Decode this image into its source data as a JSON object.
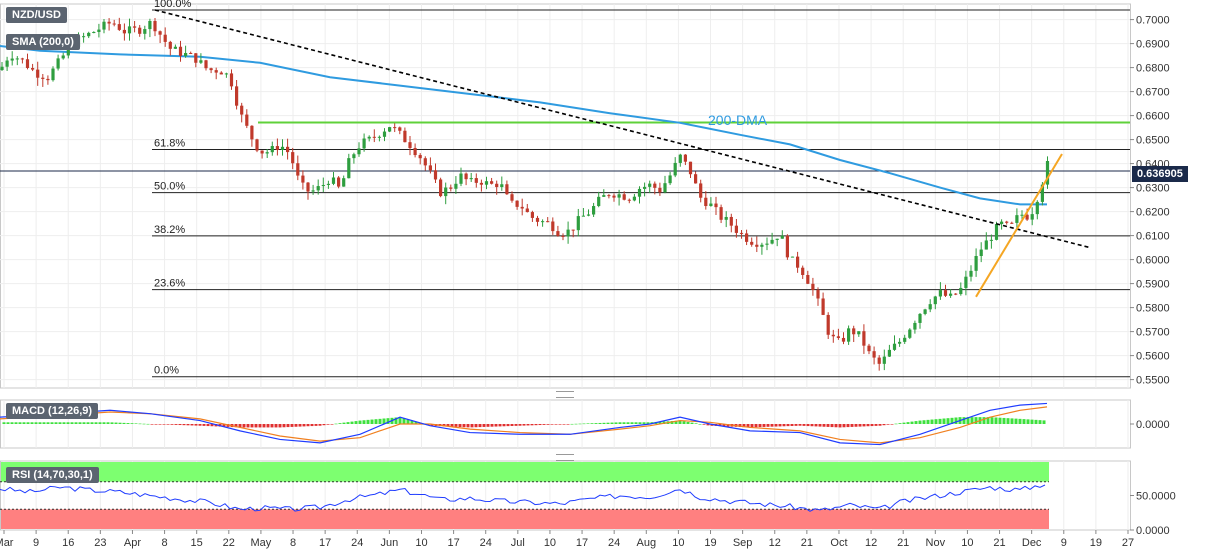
{
  "symbol_label": "NZD/USD",
  "sma_label": "SMA (200,0)",
  "macd_label": "MACD (12,26,9)",
  "rsi_label": "RSI (14,70,30,1)",
  "current_price": "0.636905",
  "dma_label": "200-DMA",
  "colors": {
    "bull": "#2e9e3f",
    "bear": "#c0392b",
    "sma": "#2f9be0",
    "resistance": "#5fd13a",
    "trend_up": "#f5a623",
    "trend_down": "#000000",
    "macd": "#1f3cff",
    "signal": "#f08020",
    "hist_pos": "#3ee03e",
    "hist_neg": "#e03030",
    "rsi": "#1f3cff",
    "overbought_zone": "#7dff70",
    "oversold_zone": "#ff8080"
  },
  "chart_data": [
    {
      "type": "candlestick",
      "title": "NZD/USD",
      "y_ticks": [
        "0.7000",
        "0.6900",
        "0.6800",
        "0.6700",
        "0.6600",
        "0.6500",
        "0.6400",
        "0.6300",
        "0.6200",
        "0.6100",
        "0.6000",
        "0.5900",
        "0.5800",
        "0.5700",
        "0.5600",
        "0.5500"
      ],
      "ylim": [
        0.5465,
        0.7065
      ],
      "x_ticks": [
        "Mar",
        "9",
        "16",
        "23",
        "Apr",
        "8",
        "15",
        "22",
        "May",
        "8",
        "17",
        "24",
        "Jun",
        "10",
        "17",
        "24",
        "Jul",
        "10",
        "17",
        "24",
        "Aug",
        "10",
        "19",
        "Sep",
        "12",
        "21",
        "Oct",
        "12",
        "21",
        "Nov",
        "10",
        "21",
        "Dec",
        "9",
        "19",
        "27"
      ],
      "fibonacci": [
        {
          "label": "100.0%",
          "value": 0.704
        },
        {
          "label": "61.8%",
          "value": 0.6459
        },
        {
          "label": "50.0%",
          "value": 0.6279
        },
        {
          "label": "38.2%",
          "value": 0.6099
        },
        {
          "label": "23.6%",
          "value": 0.5875
        },
        {
          "label": "0.0%",
          "value": 0.5512
        }
      ],
      "resistance_level": 0.6571,
      "last_price": 0.636905,
      "sma200": [
        [
          0,
          0.689
        ],
        [
          40,
          0.687
        ],
        [
          120,
          0.6855
        ],
        [
          200,
          0.6845
        ],
        [
          260,
          0.682
        ],
        [
          330,
          0.676
        ],
        [
          400,
          0.6725
        ],
        [
          470,
          0.669
        ],
        [
          540,
          0.6655
        ],
        [
          610,
          0.661
        ],
        [
          680,
          0.657
        ],
        [
          740,
          0.652
        ],
        [
          790,
          0.648
        ],
        [
          840,
          0.6415
        ],
        [
          890,
          0.636
        ],
        [
          940,
          0.63
        ],
        [
          980,
          0.6255
        ],
        [
          1020,
          0.623
        ],
        [
          1047,
          0.623
        ]
      ],
      "trend_down": [
        [
          155,
          0.704
        ],
        [
          1090,
          0.605
        ]
      ],
      "trend_up": [
        [
          976,
          0.5845
        ],
        [
          1062,
          0.644
        ]
      ],
      "price_path": [
        [
          0,
          0.679
        ],
        [
          10,
          0.686
        ],
        [
          22,
          0.683
        ],
        [
          35,
          0.678
        ],
        [
          48,
          0.676
        ],
        [
          60,
          0.683
        ],
        [
          72,
          0.69
        ],
        [
          85,
          0.693
        ],
        [
          98,
          0.696
        ],
        [
          112,
          0.699
        ],
        [
          125,
          0.695
        ],
        [
          140,
          0.696
        ],
        [
          152,
          0.699
        ],
        [
          160,
          0.694
        ],
        [
          170,
          0.688
        ],
        [
          182,
          0.686
        ],
        [
          195,
          0.684
        ],
        [
          208,
          0.679
        ],
        [
          220,
          0.679
        ],
        [
          230,
          0.676
        ],
        [
          240,
          0.661
        ],
        [
          250,
          0.652
        ],
        [
          260,
          0.645
        ],
        [
          270,
          0.645
        ],
        [
          280,
          0.648
        ],
        [
          290,
          0.644
        ],
        [
          300,
          0.631
        ],
        [
          310,
          0.628
        ],
        [
          320,
          0.63
        ],
        [
          330,
          0.634
        ],
        [
          340,
          0.629
        ],
        [
          350,
          0.642
        ],
        [
          360,
          0.648
        ],
        [
          370,
          0.65
        ],
        [
          380,
          0.653
        ],
        [
          390,
          0.656
        ],
        [
          400,
          0.652
        ],
        [
          410,
          0.648
        ],
        [
          420,
          0.643
        ],
        [
          430,
          0.636
        ],
        [
          440,
          0.628
        ],
        [
          450,
          0.63
        ],
        [
          460,
          0.635
        ],
        [
          470,
          0.632
        ],
        [
          480,
          0.633
        ],
        [
          490,
          0.631
        ],
        [
          500,
          0.632
        ],
        [
          510,
          0.623
        ],
        [
          520,
          0.623
        ],
        [
          530,
          0.618
        ],
        [
          540,
          0.616
        ],
        [
          550,
          0.615
        ],
        [
          560,
          0.611
        ],
        [
          570,
          0.612
        ],
        [
          580,
          0.617
        ],
        [
          590,
          0.62
        ],
        [
          600,
          0.625
        ],
        [
          610,
          0.628
        ],
        [
          620,
          0.627
        ],
        [
          630,
          0.626
        ],
        [
          640,
          0.63
        ],
        [
          650,
          0.631
        ],
        [
          660,
          0.629
        ],
        [
          670,
          0.635
        ],
        [
          680,
          0.643
        ],
        [
          690,
          0.637
        ],
        [
          700,
          0.626
        ],
        [
          710,
          0.623
        ],
        [
          720,
          0.618
        ],
        [
          730,
          0.615
        ],
        [
          740,
          0.611
        ],
        [
          750,
          0.608
        ],
        [
          760,
          0.607
        ],
        [
          770,
          0.608
        ],
        [
          780,
          0.611
        ],
        [
          790,
          0.6
        ],
        [
          800,
          0.597
        ],
        [
          810,
          0.59
        ],
        [
          820,
          0.58
        ],
        [
          830,
          0.568
        ],
        [
          840,
          0.565
        ],
        [
          850,
          0.571
        ],
        [
          860,
          0.568
        ],
        [
          870,
          0.56
        ],
        [
          880,
          0.556
        ],
        [
          890,
          0.562
        ],
        [
          900,
          0.566
        ],
        [
          910,
          0.572
        ],
        [
          920,
          0.578
        ],
        [
          930,
          0.583
        ],
        [
          940,
          0.586
        ],
        [
          950,
          0.584
        ],
        [
          960,
          0.587
        ],
        [
          970,
          0.595
        ],
        [
          980,
          0.604
        ],
        [
          990,
          0.609
        ],
        [
          1000,
          0.615
        ],
        [
          1010,
          0.613
        ],
        [
          1020,
          0.619
        ],
        [
          1030,
          0.618
        ],
        [
          1040,
          0.629
        ],
        [
          1047,
          0.64
        ],
        [
          1050,
          0.6369
        ]
      ]
    },
    {
      "type": "line",
      "title": "MACD (12,26,9)",
      "y_ticks": [
        "0.0000"
      ],
      "series": [
        {
          "name": "MACD",
          "points": [
            [
              0,
              0.004
            ],
            [
              60,
              0.006
            ],
            [
              110,
              0.008
            ],
            [
              150,
              0.006
            ],
            [
              200,
              0.002
            ],
            [
              240,
              -0.004
            ],
            [
              280,
              -0.009
            ],
            [
              320,
              -0.011
            ],
            [
              360,
              -0.006
            ],
            [
              400,
              0.004
            ],
            [
              430,
              -0.001
            ],
            [
              470,
              -0.005
            ],
            [
              520,
              -0.006
            ],
            [
              570,
              -0.006
            ],
            [
              620,
              -0.002
            ],
            [
              650,
              0.0
            ],
            [
              680,
              0.004
            ],
            [
              710,
              0.0
            ],
            [
              750,
              -0.004
            ],
            [
              800,
              -0.005
            ],
            [
              840,
              -0.011
            ],
            [
              880,
              -0.012
            ],
            [
              920,
              -0.006
            ],
            [
              960,
              0.002
            ],
            [
              990,
              0.008
            ],
            [
              1020,
              0.011
            ],
            [
              1047,
              0.012
            ]
          ]
        },
        {
          "name": "Signal",
          "points": [
            [
              0,
              0.003
            ],
            [
              60,
              0.005
            ],
            [
              110,
              0.007
            ],
            [
              150,
              0.006
            ],
            [
              200,
              0.003
            ],
            [
              240,
              -0.002
            ],
            [
              280,
              -0.007
            ],
            [
              320,
              -0.01
            ],
            [
              360,
              -0.008
            ],
            [
              400,
              0.0
            ],
            [
              430,
              0.0
            ],
            [
              470,
              -0.003
            ],
            [
              520,
              -0.005
            ],
            [
              570,
              -0.006
            ],
            [
              620,
              -0.003
            ],
            [
              650,
              -0.001
            ],
            [
              680,
              0.002
            ],
            [
              710,
              0.001
            ],
            [
              750,
              -0.002
            ],
            [
              800,
              -0.004
            ],
            [
              840,
              -0.009
            ],
            [
              880,
              -0.011
            ],
            [
              920,
              -0.008
            ],
            [
              960,
              -0.002
            ],
            [
              990,
              0.004
            ],
            [
              1020,
              0.008
            ],
            [
              1047,
              0.01
            ]
          ]
        }
      ],
      "ylim": [
        -0.014,
        0.014
      ]
    },
    {
      "type": "line",
      "title": "RSI (14,70,30,1)",
      "y_ticks": [
        "50.0000",
        "0.0000"
      ],
      "ylim": [
        0,
        100
      ],
      "overbought": 70,
      "oversold": 30,
      "series": [
        {
          "name": "RSI",
          "points": [
            [
              0,
              60
            ],
            [
              30,
              55
            ],
            [
              60,
              62
            ],
            [
              90,
              58
            ],
            [
              120,
              55
            ],
            [
              150,
              50
            ],
            [
              180,
              45
            ],
            [
              210,
              40
            ],
            [
              240,
              30
            ],
            [
              260,
              32
            ],
            [
              290,
              30
            ],
            [
              320,
              33
            ],
            [
              350,
              45
            ],
            [
              380,
              52
            ],
            [
              400,
              58
            ],
            [
              420,
              52
            ],
            [
              440,
              44
            ],
            [
              470,
              46
            ],
            [
              500,
              42
            ],
            [
              530,
              40
            ],
            [
              560,
              38
            ],
            [
              590,
              45
            ],
            [
              620,
              50
            ],
            [
              650,
              48
            ],
            [
              680,
              60
            ],
            [
              700,
              48
            ],
            [
              730,
              42
            ],
            [
              760,
              38
            ],
            [
              790,
              34
            ],
            [
              820,
              28
            ],
            [
              850,
              36
            ],
            [
              880,
              30
            ],
            [
              900,
              40
            ],
            [
              930,
              48
            ],
            [
              960,
              55
            ],
            [
              990,
              62
            ],
            [
              1020,
              58
            ],
            [
              1047,
              68
            ]
          ]
        }
      ]
    }
  ]
}
